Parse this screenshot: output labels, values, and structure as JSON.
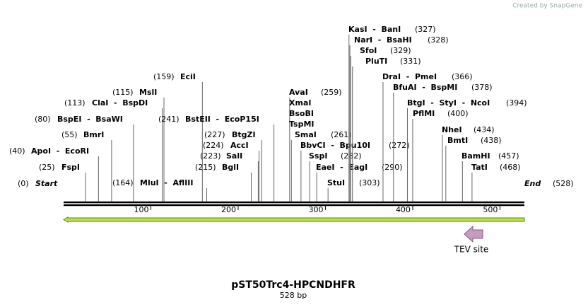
{
  "logo": "Created by SnapGene",
  "title": "pST50Trc4-HPCNDHFR",
  "subtitle": "528 bp",
  "start": {
    "label": "Start",
    "position_label": "(0)"
  },
  "end": {
    "label": "End",
    "position_label": "(528)"
  },
  "length": 528,
  "ruler": [
    100,
    200,
    300,
    400,
    500
  ],
  "feature": {
    "label": "TEV site"
  },
  "sites": [
    {
      "label": "FspI",
      "position": 25,
      "position_label": "(25)"
    },
    {
      "label": "ApoI  -  EcoRI",
      "position": 40,
      "position_label": "(40)"
    },
    {
      "label": "BmrI",
      "position": 55,
      "position_label": "(55)"
    },
    {
      "label": "BspEI  -  BsaWI",
      "position": 80,
      "position_label": "(80)"
    },
    {
      "label": "ClaI  -  BspDI",
      "position": 113,
      "position_label": "(113)"
    },
    {
      "label": "MslI",
      "position": 115,
      "position_label": "(115)"
    },
    {
      "label": "EciI",
      "position": 159,
      "position_label": "(159)"
    },
    {
      "label": "MluI  -  AflIII",
      "position": 164,
      "position_label": "(164)"
    },
    {
      "label": "BstEII  -  EcoP15I",
      "position": 241,
      "position_label": "(241)"
    },
    {
      "label": "BtgZI",
      "position": 227,
      "position_label": "(227)"
    },
    {
      "label": "AccI",
      "position": 224,
      "position_label": "(224)"
    },
    {
      "label": "SalI",
      "position": 223,
      "position_label": "(223)"
    },
    {
      "label": "BglI",
      "position": 215,
      "position_label": "(215)"
    },
    {
      "label": "AvaI",
      "position": 259,
      "position_label": "(259)"
    },
    {
      "label": "XmaI"
    },
    {
      "label": "BsoBI"
    },
    {
      "label": "TspMI"
    },
    {
      "label": "SmaI",
      "position": 261,
      "position_label": "(261)"
    },
    {
      "label": "BbvCI  -  Bpu10I",
      "position": 272,
      "position_label": "(272)"
    },
    {
      "label": "SspI",
      "position": 282,
      "position_label": "(282)"
    },
    {
      "label": "EaeI  -  EagI",
      "position": 290,
      "position_label": "(290)"
    },
    {
      "label": "StuI",
      "position": 303,
      "position_label": "(303)"
    },
    {
      "label": "KasI  -  BanI",
      "position": 327,
      "position_label": "(327)"
    },
    {
      "label": "NarI  -  BsaHI",
      "position": 328,
      "position_label": "(328)"
    },
    {
      "label": "SfoI",
      "position": 329,
      "position_label": "(329)"
    },
    {
      "label": "PluTI",
      "position": 331,
      "position_label": "(331)"
    },
    {
      "label": "DraI  -  PmeI",
      "position": 366,
      "position_label": "(366)"
    },
    {
      "label": "BfuAI  -  BspMI",
      "position": 378,
      "position_label": "(378)"
    },
    {
      "label": "BtgI  -  StyI  -  NcoI",
      "position": 394,
      "position_label": "(394)"
    },
    {
      "label": "PflMI",
      "position": 400,
      "position_label": "(400)"
    },
    {
      "label": "NheI",
      "position": 434,
      "position_label": "(434)"
    },
    {
      "label": "BmtI",
      "position": 438,
      "position_label": "(438)"
    },
    {
      "label": "BamHI",
      "position": 457,
      "position_label": "(457)"
    },
    {
      "label": "TatI",
      "position": 468,
      "position_label": "(468)"
    }
  ]
}
